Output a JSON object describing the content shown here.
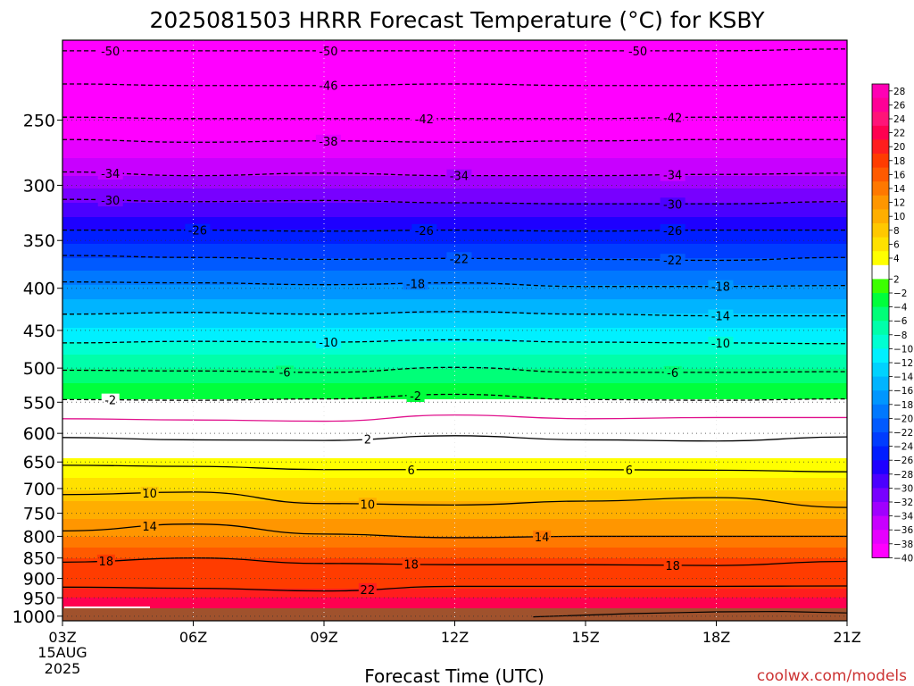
{
  "chart_data": {
    "type": "heatmap",
    "title": "2025081503 HRRR Forecast Temperature (°C) for KSBY",
    "xlabel": "Forecast Time (UTC)",
    "watermark": "coolwx.com/models",
    "x_ticks": [
      "03Z",
      "06Z",
      "09Z",
      "12Z",
      "15Z",
      "18Z",
      "21Z"
    ],
    "x_tick_hours": [
      3,
      6,
      9,
      12,
      15,
      18,
      21
    ],
    "x_date_line1": "15AUG",
    "x_date_line2": "2025",
    "xlim_hours": [
      3,
      21
    ],
    "y_ticks": [
      "250",
      "300",
      "350",
      "400",
      "450",
      "500",
      "550",
      "600",
      "650",
      "700",
      "750",
      "800",
      "850",
      "900",
      "950",
      "1000"
    ],
    "y_tick_values": [
      250,
      300,
      350,
      400,
      450,
      500,
      550,
      600,
      650,
      700,
      750,
      800,
      850,
      900,
      950,
      1000
    ],
    "ylim_hpa": [
      200,
      1013
    ],
    "y_scale": "log-pressure, inverted",
    "grid": "dotted",
    "colorbar_ticks": [
      "28",
      "26",
      "24",
      "22",
      "20",
      "18",
      "16",
      "14",
      "12",
      "10",
      "8",
      "6",
      "4",
      "2",
      "-2",
      "-4",
      "-6",
      "-8",
      "-10",
      "-12",
      "-14",
      "-16",
      "-18",
      "-20",
      "-22",
      "-24",
      "-26",
      "-28",
      "-30",
      "-32",
      "-34",
      "-36",
      "-38",
      "-40"
    ],
    "colorbar_colors": [
      "#ff00b4",
      "#ff0096",
      "#ff1478",
      "#ff0050",
      "#ff1e1e",
      "#ff3c00",
      "#ff5a00",
      "#ff7800",
      "#ff9600",
      "#ffae00",
      "#ffc800",
      "#ffe100",
      "#ffff00",
      "#ffffff",
      "#3cff00",
      "#00ff3c",
      "#00ff78",
      "#00ffaa",
      "#00ffd2",
      "#00f0ff",
      "#00d2ff",
      "#00b4ff",
      "#0096ff",
      "#0078ff",
      "#005aff",
      "#003cff",
      "#001eff",
      "#1e00ff",
      "#4b00ff",
      "#7800ff",
      "#a000ff",
      "#c800ff",
      "#e600ff",
      "#ff00ff"
    ],
    "temperature_profile": [
      {
        "p": 1000,
        "t": 24
      },
      {
        "p": 950,
        "t": 22
      },
      {
        "p": 925,
        "t": 20
      },
      {
        "p": 850,
        "t": 18
      },
      {
        "p": 800,
        "t": 14
      },
      {
        "p": 725,
        "t": 10
      },
      {
        "p": 680,
        "t": 6
      },
      {
        "p": 610,
        "t": 2
      },
      {
        "p": 575,
        "t": 0
      },
      {
        "p": 545,
        "t": -2
      },
      {
        "p": 500,
        "t": -6
      },
      {
        "p": 465,
        "t": -10
      },
      {
        "p": 430,
        "t": -14
      },
      {
        "p": 397,
        "t": -18
      },
      {
        "p": 367,
        "t": -22
      },
      {
        "p": 340,
        "t": -26
      },
      {
        "p": 315,
        "t": -30
      },
      {
        "p": 292,
        "t": -34
      },
      {
        "p": 265,
        "t": -38
      },
      {
        "p": 248,
        "t": -42
      },
      {
        "p": 226,
        "t": -46
      },
      {
        "p": 206,
        "t": -50
      }
    ],
    "contours": [
      {
        "value": -50,
        "style": "dashed",
        "p": [
          206,
          206,
          206,
          206,
          206,
          206,
          205
        ],
        "labels": [
          {
            "text": "-50",
            "hour": 4.1
          },
          {
            "text": "-50",
            "hour": 9.1
          },
          {
            "text": "-50",
            "hour": 16.2
          }
        ]
      },
      {
        "value": -46,
        "style": "dashed",
        "p": [
          226,
          227,
          227,
          226,
          227,
          227,
          226
        ],
        "labels": [
          {
            "text": "-46",
            "hour": 9.1
          }
        ]
      },
      {
        "value": -42,
        "style": "dashed",
        "p": [
          248,
          249,
          249,
          249,
          249,
          248,
          248
        ],
        "labels": [
          {
            "text": "-42",
            "hour": 11.3
          },
          {
            "text": "-42",
            "hour": 17.0
          }
        ]
      },
      {
        "value": -38,
        "style": "dashed",
        "p": [
          264,
          266,
          265,
          266,
          265,
          264,
          264
        ],
        "labels": [
          {
            "text": "-38",
            "hour": 9.1
          }
        ]
      },
      {
        "value": -34,
        "style": "dashed",
        "p": [
          289,
          292,
          290,
          292,
          292,
          291,
          290
        ],
        "labels": [
          {
            "text": "-34",
            "hour": 4.1
          },
          {
            "text": "-34",
            "hour": 12.1
          },
          {
            "text": "-34",
            "hour": 17.0
          }
        ]
      },
      {
        "value": -30,
        "style": "dashed",
        "p": [
          312,
          314,
          313,
          315,
          316,
          316,
          314
        ],
        "labels": [
          {
            "text": "-30",
            "hour": 4.1
          },
          {
            "text": "-30",
            "hour": 17.0
          }
        ]
      },
      {
        "value": -26,
        "style": "dashed",
        "p": [
          340,
          340,
          341,
          340,
          341,
          340,
          340
        ],
        "labels": [
          {
            "text": "-26",
            "hour": 6.1
          },
          {
            "text": "-26",
            "hour": 11.3
          },
          {
            "text": "-26",
            "hour": 17.0
          }
        ]
      },
      {
        "value": -22,
        "style": "dashed",
        "p": [
          365,
          367,
          369,
          368,
          369,
          370,
          367
        ],
        "labels": [
          {
            "text": "-22",
            "hour": 12.1
          },
          {
            "text": "-22",
            "hour": 17.0
          }
        ]
      },
      {
        "value": -18,
        "style": "dashed",
        "p": [
          393,
          394,
          396,
          394,
          398,
          398,
          397
        ],
        "labels": [
          {
            "text": "-18",
            "hour": 11.1
          },
          {
            "text": "-18",
            "hour": 18.1
          }
        ]
      },
      {
        "value": -14,
        "style": "dashed",
        "p": [
          430,
          428,
          430,
          427,
          430,
          432,
          432
        ],
        "labels": [
          {
            "text": "-14",
            "hour": 18.1
          }
        ]
      },
      {
        "value": -10,
        "style": "dashed",
        "p": [
          466,
          464,
          465,
          462,
          465,
          466,
          467
        ],
        "labels": [
          {
            "text": "-10",
            "hour": 9.1
          },
          {
            "text": "-10",
            "hour": 18.1
          }
        ]
      },
      {
        "value": -6,
        "style": "dashed",
        "p": [
          503,
          504,
          506,
          499,
          506,
          506,
          505
        ],
        "labels": [
          {
            "text": "-6",
            "hour": 8.1
          },
          {
            "text": "-6",
            "hour": 17.0
          }
        ]
      },
      {
        "value": -2,
        "style": "dashed",
        "p": [
          546,
          547,
          545,
          538,
          546,
          547,
          545
        ],
        "labels": [
          {
            "text": "-2",
            "hour": 4.1
          },
          {
            "text": "-2",
            "hour": 11.1
          }
        ]
      },
      {
        "value": 0,
        "style": "solid-magenta",
        "p": [
          576,
          578,
          580,
          570,
          576,
          574,
          574
        ],
        "labels": []
      },
      {
        "value": 2,
        "style": "solid",
        "p": [
          607,
          611,
          612,
          604,
          611,
          613,
          606
        ],
        "labels": [
          {
            "text": "2",
            "hour": 10.0
          }
        ]
      },
      {
        "value": 6,
        "style": "solid",
        "p": [
          656,
          658,
          664,
          664,
          664,
          665,
          668
        ],
        "labels": [
          {
            "text": "6",
            "hour": 11.0
          },
          {
            "text": "6",
            "hour": 16.0
          }
        ]
      },
      {
        "value": 10,
        "style": "solid",
        "p": [
          712,
          707,
          730,
          733,
          725,
          718,
          738
        ],
        "labels": [
          {
            "text": "10",
            "hour": 5.0
          },
          {
            "text": "10",
            "hour": 10.0
          }
        ]
      },
      {
        "value": 14,
        "style": "solid",
        "p": [
          788,
          773,
          795,
          803,
          800,
          800,
          800
        ],
        "labels": [
          {
            "text": "14",
            "hour": 5.0
          },
          {
            "text": "14",
            "hour": 14.0
          }
        ]
      },
      {
        "value": 18,
        "style": "solid",
        "p": [
          860,
          850,
          863,
          866,
          866,
          868,
          858
        ],
        "labels": [
          {
            "text": "18",
            "hour": 4.0
          },
          {
            "text": "18",
            "hour": 11.0
          },
          {
            "text": "18",
            "hour": 17.0
          }
        ]
      },
      {
        "value": 22,
        "style": "solid",
        "p": [
          922,
          925,
          932,
          920,
          920,
          920,
          919
        ],
        "labels": [
          {
            "text": "22",
            "hour": 10.0
          }
        ]
      }
    ],
    "surface_contour_hours": [
      13.8,
      16.0,
      18.0,
      19.5,
      21.0
    ],
    "surface_contour_p": [
      1002,
      993,
      988,
      987,
      991
    ],
    "colors": {
      "frame": "#000000",
      "ground": "#a0522d",
      "contour_label": "#000000",
      "freezing_line": "#e0108c",
      "watermark": "#cc3333"
    }
  }
}
